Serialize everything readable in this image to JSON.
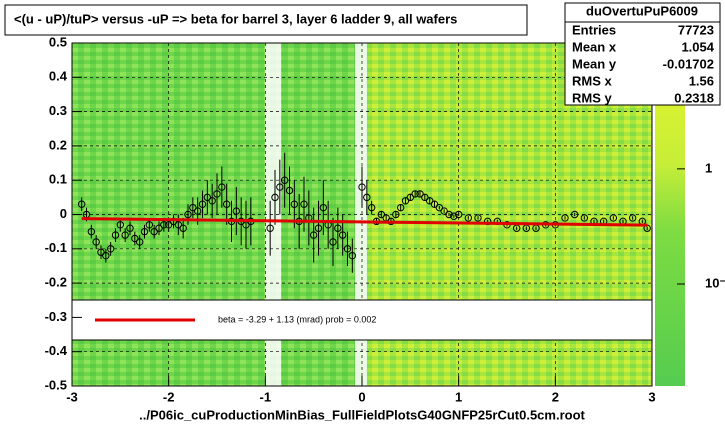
{
  "chart_data": {
    "type": "profile",
    "title": "<(u - uP)/tuP> versus  -uP => beta for barrel 3, layer 6 ladder 9, all wafers",
    "x_label": "../P06ic_cuProductionMinBias_FullFieldPlotsG40GNFP25rCut0.5cm.root",
    "xlim": [
      -3,
      3
    ],
    "xticks": [
      -3,
      -2,
      -1,
      0,
      1,
      2,
      3
    ],
    "ylim": [
      -0.5,
      0.5
    ],
    "yticks": [
      -0.5,
      -0.4,
      -0.3,
      -0.2,
      -0.1,
      0,
      0.1,
      0.2,
      0.3,
      0.4,
      0.5
    ],
    "grid": true,
    "series": [
      {
        "color": "#000000",
        "x": [
          -2.9,
          -2.85,
          -2.8,
          -2.75,
          -2.7,
          -2.65,
          -2.6,
          -2.55,
          -2.5,
          -2.45,
          -2.4,
          -2.35,
          -2.3,
          -2.25,
          -2.2,
          -2.15,
          -2.1,
          -2.05,
          -2.0,
          -1.95,
          -1.9,
          -1.85,
          -1.8,
          -1.75,
          -1.7,
          -1.65,
          -1.6,
          -1.55,
          -1.5,
          -1.45,
          -1.4,
          -1.35,
          -1.3,
          -1.25,
          -1.2,
          -1.15,
          -0.95,
          -0.9,
          -0.85,
          -0.8,
          -0.75,
          -0.7,
          -0.65,
          -0.6,
          -0.55,
          -0.5,
          -0.45,
          -0.4,
          -0.35,
          -0.3,
          -0.25,
          -0.2,
          -0.15,
          -0.1,
          0.0,
          0.05,
          0.1,
          0.15,
          0.2,
          0.25,
          0.3,
          0.35,
          0.4,
          0.45,
          0.5,
          0.55,
          0.6,
          0.65,
          0.7,
          0.75,
          0.8,
          0.85,
          0.9,
          0.95,
          1.0,
          1.1,
          1.2,
          1.3,
          1.4,
          1.5,
          1.6,
          1.7,
          1.8,
          1.9,
          2.0,
          2.1,
          2.2,
          2.3,
          2.4,
          2.5,
          2.6,
          2.7,
          2.8,
          2.9,
          2.95
        ],
        "values": [
          0.03,
          0.0,
          -0.05,
          -0.08,
          -0.11,
          -0.12,
          -0.1,
          -0.06,
          -0.03,
          -0.06,
          -0.04,
          -0.07,
          -0.08,
          -0.05,
          -0.03,
          -0.05,
          -0.04,
          -0.03,
          -0.03,
          -0.02,
          -0.03,
          -0.04,
          0.0,
          0.02,
          0.01,
          0.03,
          0.05,
          0.04,
          0.06,
          0.08,
          0.03,
          -0.02,
          0.01,
          -0.02,
          -0.03,
          -0.02,
          -0.04,
          0.05,
          0.08,
          0.1,
          0.07,
          0.03,
          -0.02,
          0.03,
          -0.01,
          -0.06,
          -0.04,
          0.02,
          -0.03,
          -0.08,
          -0.04,
          -0.06,
          -0.1,
          -0.12,
          0.08,
          0.05,
          0.02,
          -0.02,
          0.0,
          -0.01,
          -0.02,
          0.0,
          0.02,
          0.04,
          0.05,
          0.06,
          0.06,
          0.05,
          0.04,
          0.03,
          0.02,
          0.01,
          0.0,
          -0.005,
          0.0,
          -0.01,
          -0.01,
          -0.02,
          -0.02,
          -0.03,
          -0.04,
          -0.04,
          -0.04,
          -0.03,
          -0.03,
          -0.01,
          0.0,
          -0.01,
          -0.02,
          -0.02,
          -0.01,
          -0.02,
          -0.01,
          -0.02,
          -0.04
        ],
        "errors": [
          0.02,
          0.02,
          0.02,
          0.02,
          0.02,
          0.02,
          0.02,
          0.02,
          0.02,
          0.02,
          0.02,
          0.02,
          0.02,
          0.02,
          0.02,
          0.02,
          0.02,
          0.02,
          0.02,
          0.02,
          0.03,
          0.03,
          0.03,
          0.03,
          0.04,
          0.04,
          0.05,
          0.05,
          0.06,
          0.06,
          0.06,
          0.06,
          0.07,
          0.07,
          0.07,
          0.07,
          0.08,
          0.08,
          0.08,
          0.08,
          0.07,
          0.07,
          0.08,
          0.08,
          0.08,
          0.08,
          0.08,
          0.08,
          0.07,
          0.07,
          0.06,
          0.06,
          0.05,
          0.05,
          0.06,
          0.05,
          0.02,
          0.01,
          0.01,
          0.01,
          0.01,
          0.01,
          0.01,
          0.01,
          0.01,
          0.01,
          0.01,
          0.01,
          0.01,
          0.01,
          0.005,
          0.005,
          0.005,
          0.005,
          0.005,
          0.005,
          0.005,
          0.005,
          0.005,
          0.005,
          0.005,
          0.005,
          0.005,
          0.005,
          0.005,
          0.005,
          0.005,
          0.005,
          0.005,
          0.005,
          0.005,
          0.005,
          0.005,
          0.005,
          0.005
        ]
      }
    ],
    "fit": {
      "label": "beta =   -3.29 +   1.13 (mrad) prob = 0.002",
      "color": "#e00000",
      "x": [
        -2.9,
        2.95
      ],
      "values": [
        -0.012,
        -0.031
      ]
    },
    "stats": {
      "title": "duOvertuPuP6009",
      "rows": [
        [
          "Entries",
          77723
        ],
        [
          "Mean x",
          1.054
        ],
        [
          "Mean y",
          -0.01702
        ],
        [
          "RMS x",
          1.56
        ],
        [
          "RMS y",
          0.2318
        ]
      ]
    },
    "colorbar": {
      "log": true,
      "zlim": [
        0.013,
        12.4
      ],
      "ticks": [
        {
          "value": 1,
          "label": "1"
        },
        {
          "value": 0.1,
          "label": "10⁻¹"
        }
      ]
    }
  }
}
